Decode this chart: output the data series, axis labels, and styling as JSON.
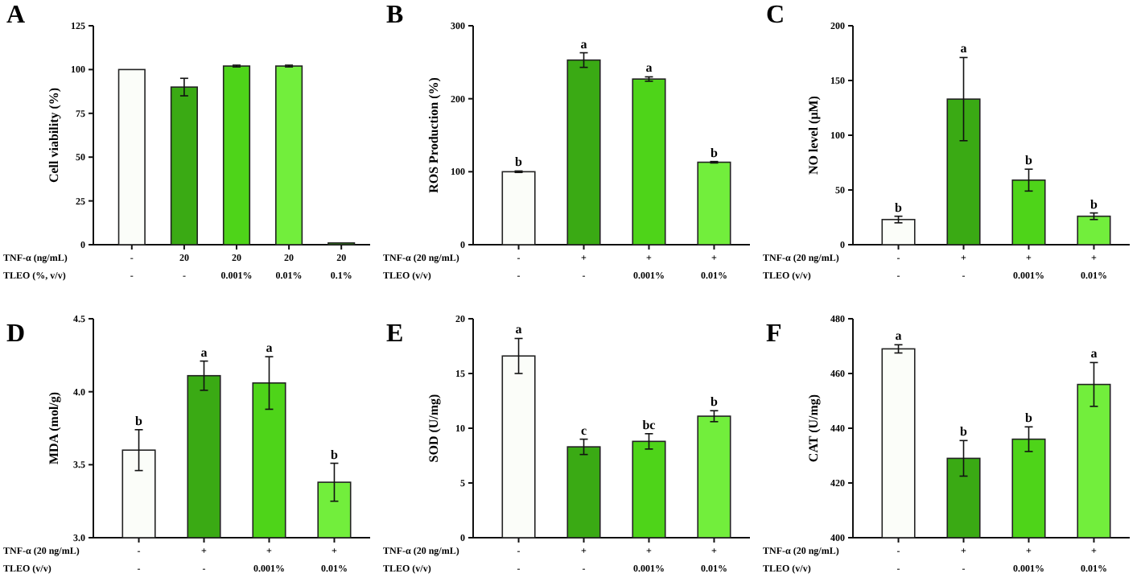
{
  "chart_data": [
    {
      "type": "bar",
      "title": "A",
      "ylabel": "Cell viability (%)",
      "categories": [
        "-\n-",
        "20\n-",
        "20\n0.001%",
        "20\n0.01%",
        "20\n0.1%"
      ],
      "values": [
        100,
        90,
        102,
        102,
        1
      ],
      "errors": [
        null,
        5,
        0.5,
        0.5,
        null
      ],
      "colors": [
        "#fbfdf9",
        "#3aaa14",
        "#4ed419",
        "#72ee3c",
        "#3aaa14"
      ],
      "ylim": [
        0,
        125
      ],
      "yticks": [
        0,
        25,
        50,
        75,
        100,
        125
      ],
      "annotations": [
        "TNF-α (ng/mL)",
        "TLEO (%, v/v)"
      ]
    },
    {
      "type": "bar",
      "title": "B",
      "ylabel": "ROS Production (%)",
      "categories": [
        "-\n-",
        "+\n-",
        "+\n0.001%",
        "+\n0.01%"
      ],
      "values": [
        100,
        253,
        227,
        113
      ],
      "errors": [
        1,
        10,
        3,
        1
      ],
      "colors": [
        "#fbfdf9",
        "#3aaa14",
        "#4ed419",
        "#72ee3c"
      ],
      "ylim": [
        0,
        300
      ],
      "yticks": [
        0,
        100,
        200,
        300
      ],
      "annotations": [
        "TNF-α (20 ng/mL)",
        "TLEO (v/v)",
        {
          "text": "b",
          "x": "-\n-",
          "y": 101
        },
        {
          "text": "a",
          "x": "+\n-",
          "y": 263
        },
        {
          "text": "a",
          "x": "+\n0.001%",
          "y": 230
        },
        {
          "text": "b",
          "x": "+\n0.01%",
          "y": 114
        }
      ]
    },
    {
      "type": "bar",
      "title": "C",
      "ylabel": "NO level (μM)",
      "categories": [
        "-\n-",
        "+\n-",
        "+\n0.001%",
        "+\n0.01%"
      ],
      "values": [
        23,
        133,
        59,
        26
      ],
      "errors": [
        3,
        38,
        10,
        3
      ],
      "colors": [
        "#fbfdf9",
        "#3aaa14",
        "#4ed419",
        "#72ee3c"
      ],
      "ylim": [
        0,
        200
      ],
      "yticks": [
        0,
        50,
        100,
        150,
        200
      ],
      "annotations": [
        "TNF-α (20 ng/mL)",
        "TLEO (v/v)",
        {
          "text": "b",
          "x": "-\n-",
          "y": 26
        },
        {
          "text": "a",
          "x": "+\n-",
          "y": 171
        },
        {
          "text": "b",
          "x": "+\n0.001%",
          "y": 69
        },
        {
          "text": "b",
          "x": "+\n0.01%",
          "y": 29
        }
      ]
    },
    {
      "type": "bar",
      "title": "D",
      "ylabel": "MDA (mol/g)",
      "categories": [
        "-\n-",
        "+\n-",
        "+\n0.001%",
        "+\n0.01%"
      ],
      "values": [
        3.6,
        4.11,
        4.06,
        3.38
      ],
      "errors": [
        0.14,
        0.1,
        0.18,
        0.13
      ],
      "colors": [
        "#fbfdf9",
        "#3aaa14",
        "#4ed419",
        "#72ee3c"
      ],
      "ylim": [
        3.0,
        4.5
      ],
      "yticks": [
        {
          "value": 3.0,
          "label": "3.0"
        },
        {
          "value": 3.5,
          "label": "3.5"
        },
        {
          "value": 4.0,
          "label": "4.0"
        },
        {
          "value": 4.5,
          "label": "4.5"
        }
      ],
      "annotations": [
        "TNF-α (20 ng/mL)",
        "TLEO (v/v)",
        {
          "text": "b",
          "x": "-\n-",
          "y": 3.74
        },
        {
          "text": "a",
          "x": "+\n-",
          "y": 4.21
        },
        {
          "text": "a",
          "x": "+\n0.001%",
          "y": 4.24
        },
        {
          "text": "b",
          "x": "+\n0.01%",
          "y": 3.51
        }
      ]
    },
    {
      "type": "bar",
      "title": "E",
      "ylabel": "SOD (U/mg)",
      "categories": [
        "-\n-",
        "+\n-",
        "+\n0.001%",
        "+\n0.01%"
      ],
      "values": [
        16.6,
        8.3,
        8.8,
        11.1
      ],
      "errors": [
        1.6,
        0.7,
        0.7,
        0.5
      ],
      "colors": [
        "#fbfdf9",
        "#3aaa14",
        "#4ed419",
        "#72ee3c"
      ],
      "ylim": [
        0,
        20
      ],
      "yticks": [
        0,
        5,
        10,
        15,
        20
      ],
      "annotations": [
        "TNF-α (20 ng/mL)",
        "TLEO (v/v)",
        {
          "text": "a",
          "x": "-\n-",
          "y": 18.2
        },
        {
          "text": "c",
          "x": "+\n-",
          "y": 9
        },
        {
          "text": "bc",
          "x": "+\n0.001%",
          "y": 9.5
        },
        {
          "text": "b",
          "x": "+\n0.01%",
          "y": 11.6
        }
      ]
    },
    {
      "type": "bar",
      "title": "F",
      "ylabel": "CAT (U/mg)",
      "categories": [
        "-\n-",
        "+\n-",
        "+\n0.001%",
        "+\n0.01%"
      ],
      "values": [
        469,
        429,
        436,
        456
      ],
      "errors": [
        1.5,
        6.5,
        4.5,
        8
      ],
      "colors": [
        "#fbfdf9",
        "#3aaa14",
        "#4ed419",
        "#72ee3c"
      ],
      "ylim": [
        400,
        480
      ],
      "yticks": [
        400,
        420,
        440,
        460,
        480
      ],
      "annotations": [
        "TNF-α (20 ng/mL)",
        "TLEO (v/v)",
        {
          "text": "a",
          "x": "-\n-",
          "y": 470.5
        },
        {
          "text": "b",
          "x": "+\n-",
          "y": 435.5
        },
        {
          "text": "b",
          "x": "+\n0.001%",
          "y": 440.5
        },
        {
          "text": "a",
          "x": "+\n0.01%",
          "y": 464
        }
      ]
    }
  ]
}
